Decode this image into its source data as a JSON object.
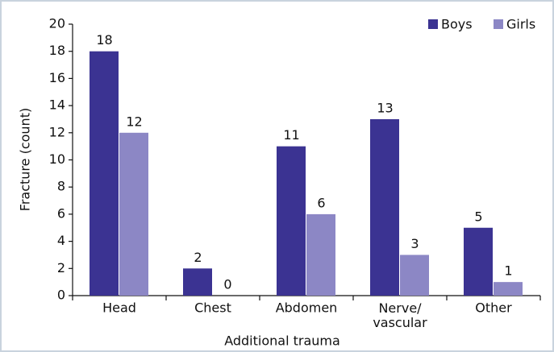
{
  "chart_data": {
    "type": "bar",
    "x_label": "Additional trauma",
    "y_label": "Fracture (count)",
    "categories": [
      "Head",
      "Chest",
      "Abdomen",
      "Nerve/\nvascular",
      "Other"
    ],
    "series": [
      {
        "name": "Boys",
        "color": "#3b3392",
        "values": [
          18,
          2,
          11,
          13,
          5
        ]
      },
      {
        "name": "Girls",
        "color": "#8c87c5",
        "values": [
          12,
          0,
          6,
          3,
          1
        ]
      }
    ],
    "ylim": [
      0,
      20
    ],
    "yticks": [
      0,
      2,
      4,
      6,
      8,
      10,
      12,
      14,
      16,
      18,
      20
    ],
    "legend": "top-right"
  }
}
